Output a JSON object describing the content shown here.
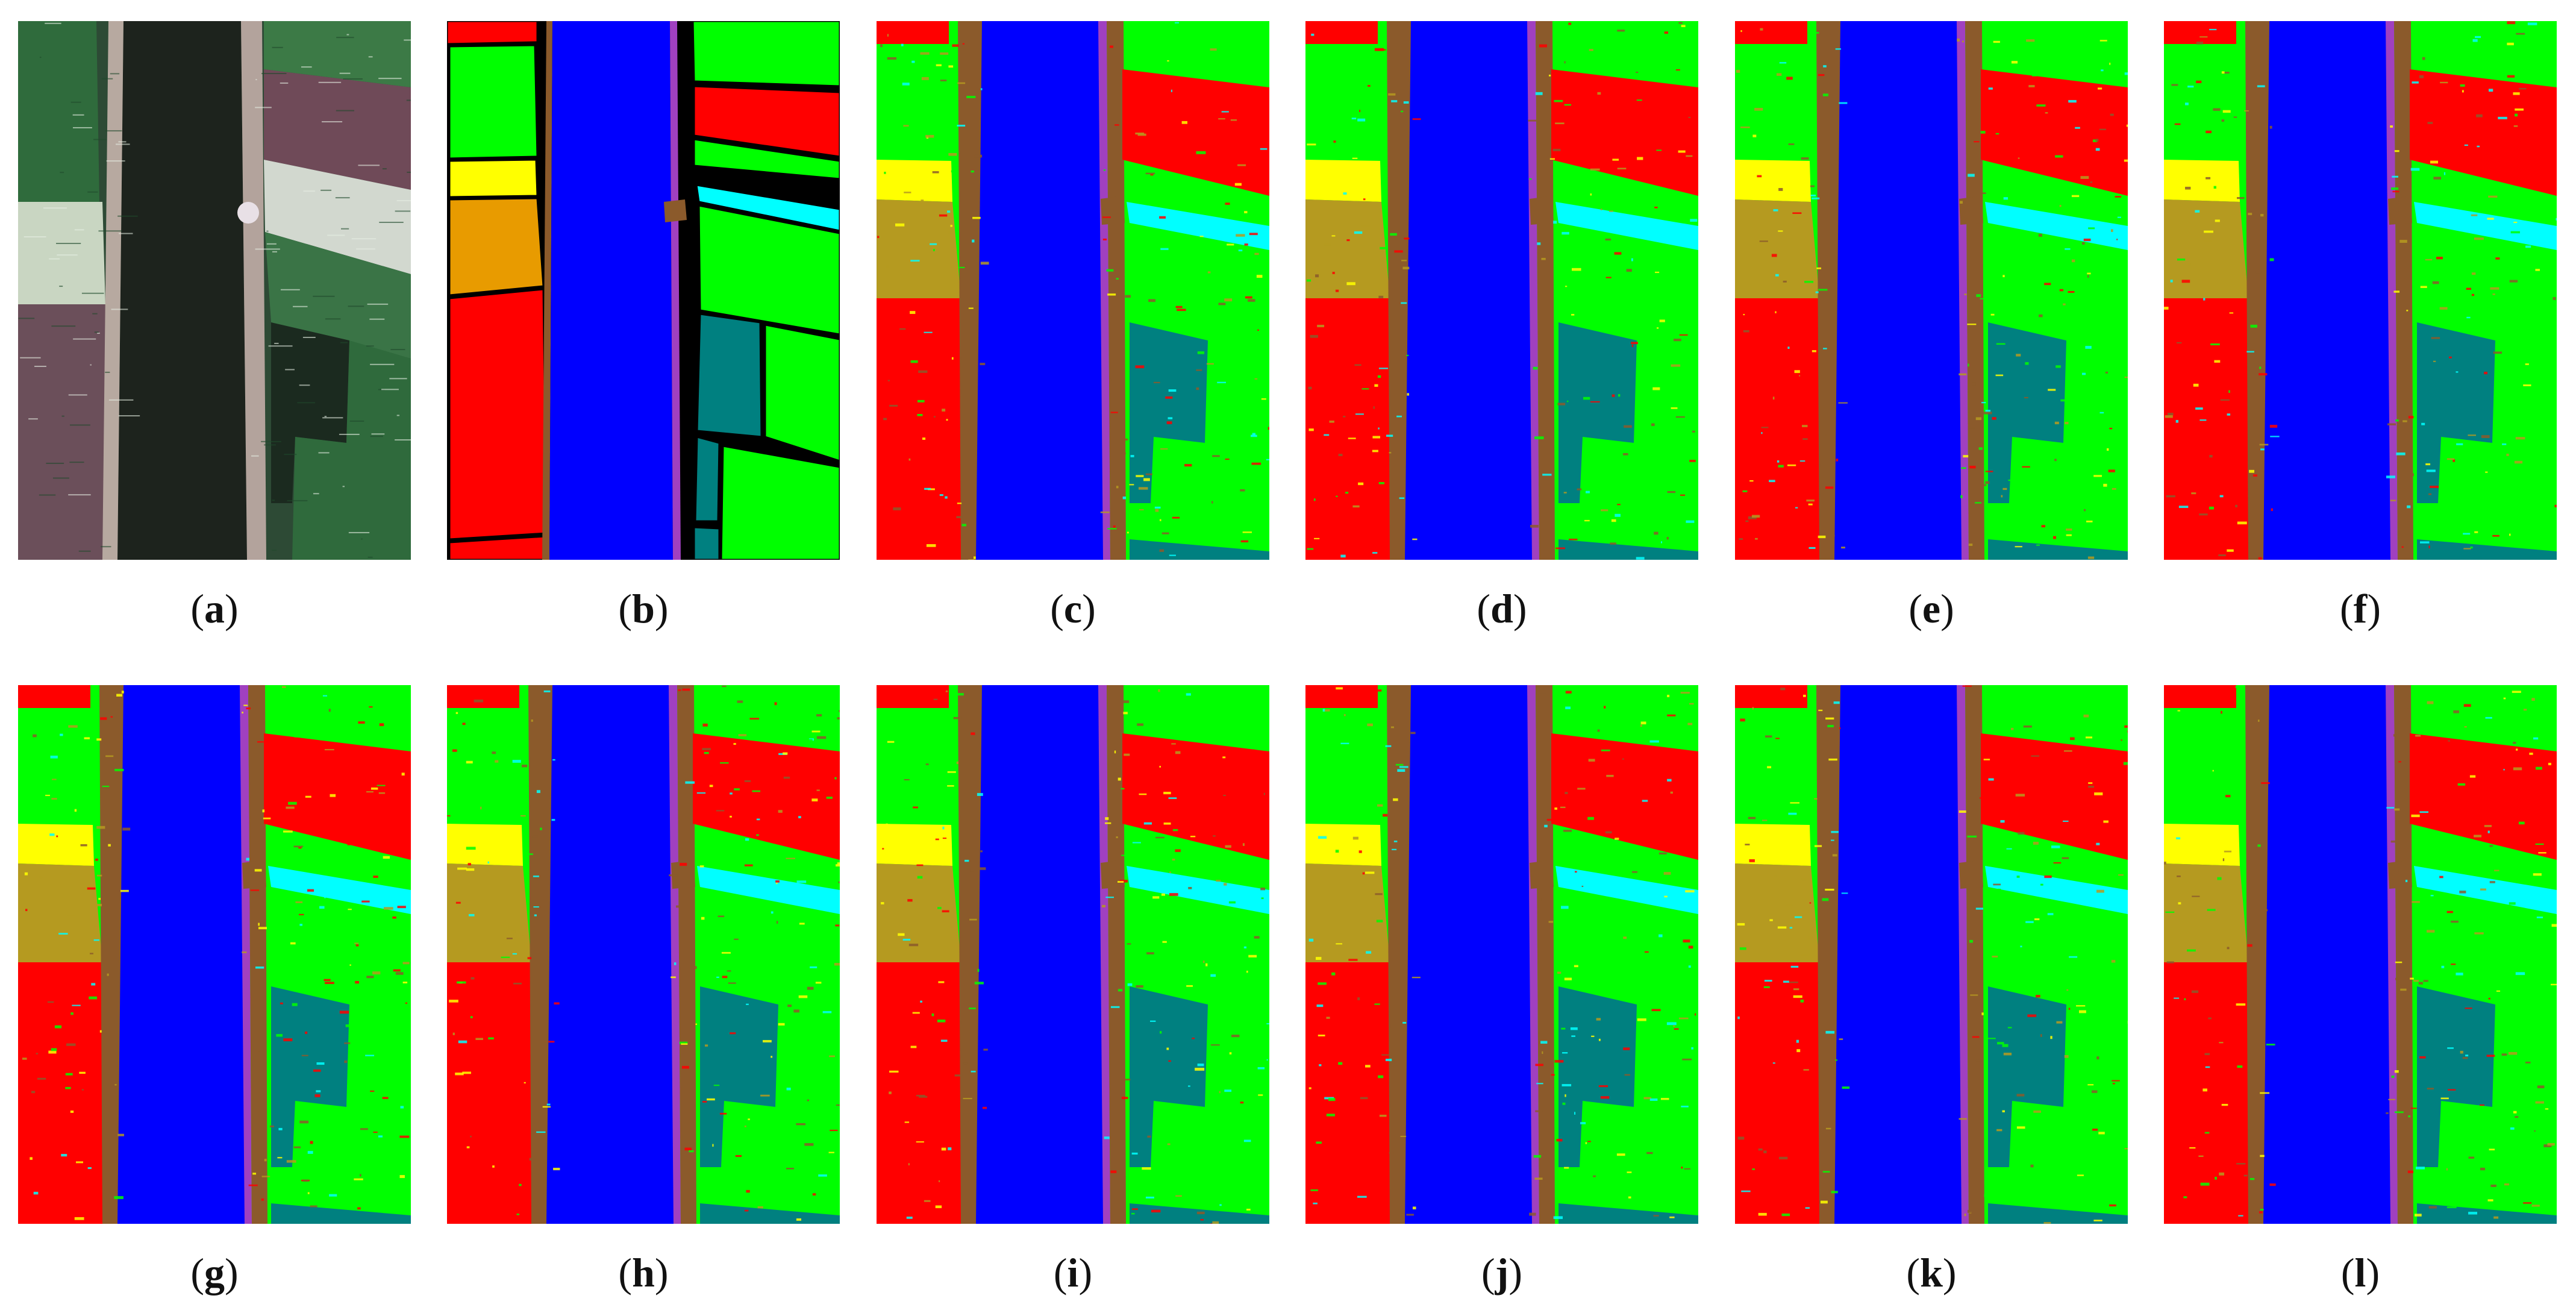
{
  "colors": {
    "water": "#0000ff",
    "crop_green": "#00ff00",
    "crop_red": "#ff0000",
    "crop_yellow": "#ffff00",
    "crop_orange": "#e89b00",
    "crop_cyan": "#00ffff",
    "crop_teal": "#008080",
    "embankment_brown": "#8b5a2b",
    "embankment_violet": "#a040c0",
    "background_black": "#000000"
  },
  "panels": [
    {
      "id": "a",
      "kind": "rgb",
      "label": "a"
    },
    {
      "id": "b",
      "kind": "ground-truth",
      "label": "b"
    },
    {
      "id": "c",
      "kind": "classification",
      "label": "c"
    },
    {
      "id": "d",
      "kind": "classification",
      "label": "d"
    },
    {
      "id": "e",
      "kind": "classification",
      "label": "e"
    },
    {
      "id": "f",
      "kind": "classification",
      "label": "f"
    },
    {
      "id": "g",
      "kind": "classification",
      "label": "g"
    },
    {
      "id": "h",
      "kind": "classification",
      "label": "h"
    },
    {
      "id": "i",
      "kind": "classification",
      "label": "i"
    },
    {
      "id": "j",
      "kind": "classification",
      "label": "j"
    },
    {
      "id": "k",
      "kind": "classification",
      "label": "k"
    },
    {
      "id": "l",
      "kind": "classification",
      "label": "l"
    }
  ]
}
